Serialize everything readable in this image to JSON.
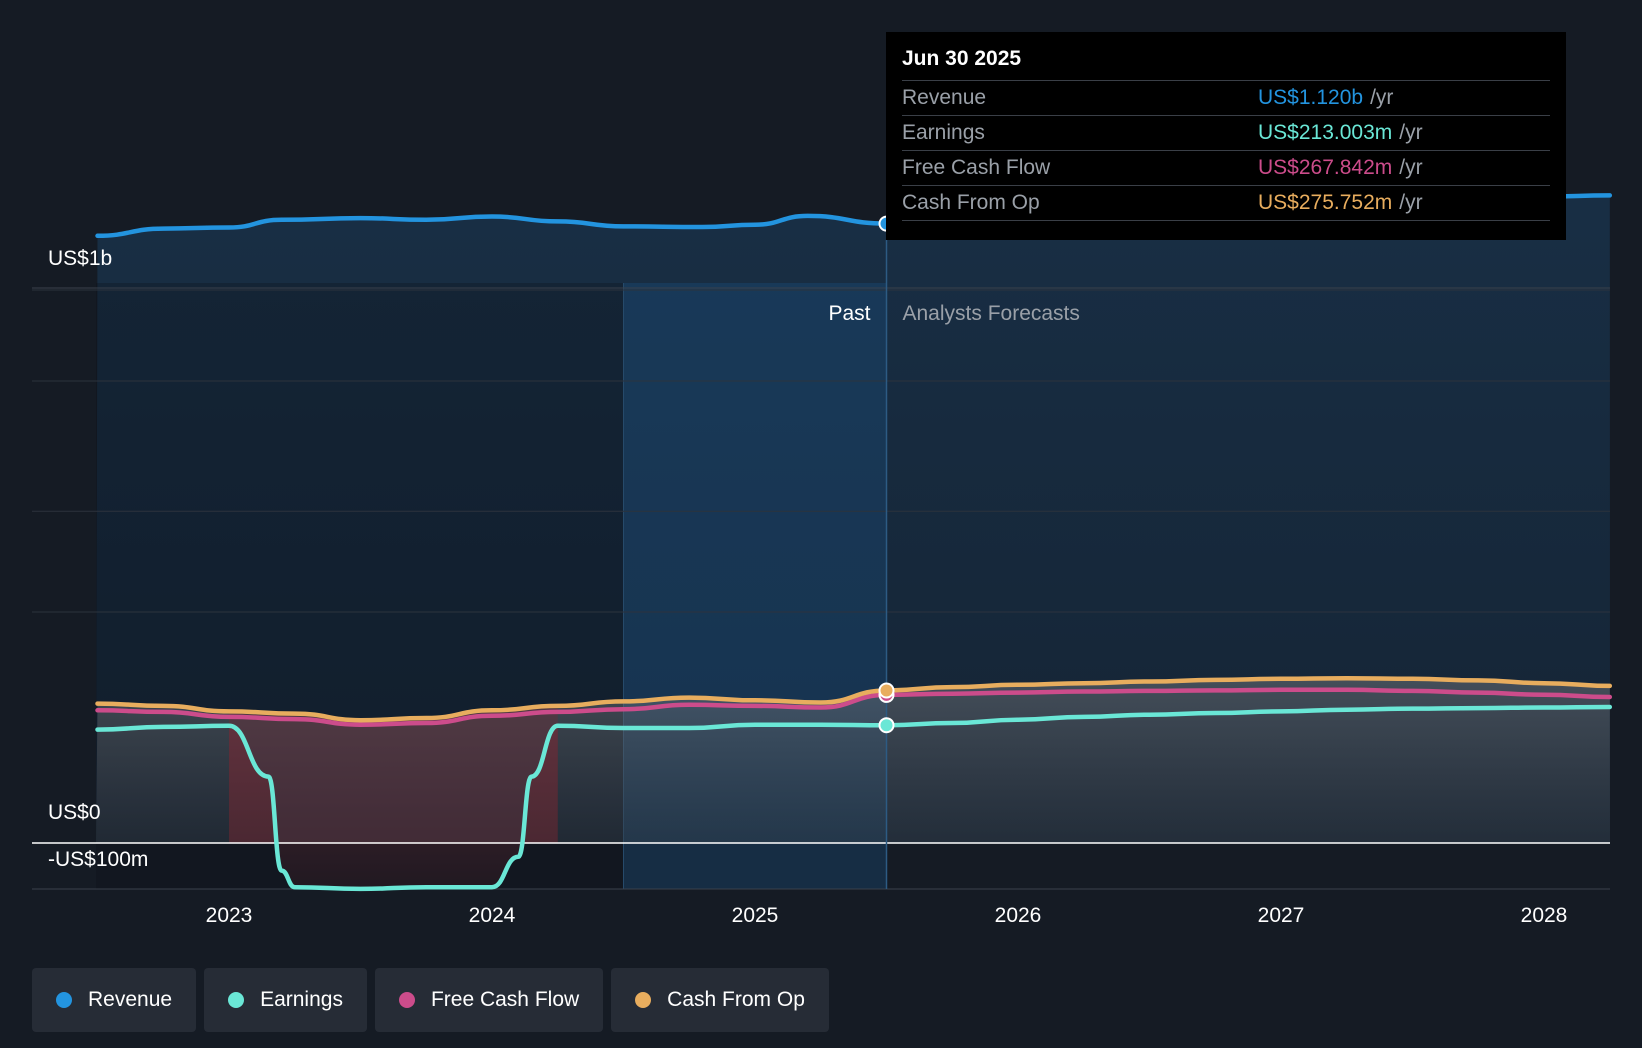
{
  "chart_data": {
    "type": "line",
    "y_ticks": [
      {
        "label": "US$1b",
        "value": 1000
      },
      {
        "label": "US$0",
        "value": 0
      },
      {
        "label": "-US$100m",
        "value": -100
      }
    ],
    "x_ticks": [
      "2023",
      "2024",
      "2025",
      "2026",
      "2027",
      "2028"
    ],
    "ylim": [
      -100,
      1200
    ],
    "past_label": "Past",
    "forecast_label": "Analysts Forecasts",
    "series": [
      {
        "name": "Revenue",
        "color": "#2394df",
        "points": [
          [
            2022.5,
            1098
          ],
          [
            2022.75,
            1111
          ],
          [
            2023.0,
            1113
          ],
          [
            2023.2,
            1127
          ],
          [
            2023.5,
            1130
          ],
          [
            2023.75,
            1127
          ],
          [
            2024.0,
            1133
          ],
          [
            2024.25,
            1124
          ],
          [
            2024.5,
            1115
          ],
          [
            2024.8,
            1114
          ],
          [
            2025.0,
            1118
          ],
          [
            2025.2,
            1134
          ],
          [
            2025.5,
            1120
          ],
          [
            2025.75,
            1115
          ],
          [
            2026.0,
            1112
          ],
          [
            2026.25,
            1111
          ],
          [
            2026.5,
            1116
          ],
          [
            2026.75,
            1129
          ],
          [
            2027.0,
            1144
          ],
          [
            2027.25,
            1156
          ],
          [
            2027.5,
            1162
          ],
          [
            2027.75,
            1166
          ],
          [
            2028.0,
            1169
          ],
          [
            2028.25,
            1171
          ]
        ]
      },
      {
        "name": "Earnings",
        "color": "#6ae7d6",
        "points": [
          [
            2022.5,
            205
          ],
          [
            2022.75,
            210
          ],
          [
            2023.0,
            212
          ],
          [
            2023.15,
            120
          ],
          [
            2023.2,
            -50
          ],
          [
            2023.25,
            -80
          ],
          [
            2023.5,
            -83
          ],
          [
            2023.75,
            -80
          ],
          [
            2024.0,
            -80
          ],
          [
            2024.1,
            -25
          ],
          [
            2024.15,
            120
          ],
          [
            2024.25,
            212
          ],
          [
            2024.5,
            208
          ],
          [
            2024.75,
            208
          ],
          [
            2025.0,
            214
          ],
          [
            2025.25,
            214
          ],
          [
            2025.5,
            213
          ],
          [
            2025.75,
            217
          ],
          [
            2026.0,
            223
          ],
          [
            2026.25,
            228
          ],
          [
            2026.5,
            232
          ],
          [
            2026.75,
            235
          ],
          [
            2027.0,
            238
          ],
          [
            2027.25,
            241
          ],
          [
            2027.5,
            243
          ],
          [
            2027.75,
            244
          ],
          [
            2028.0,
            245
          ],
          [
            2028.25,
            246
          ]
        ]
      },
      {
        "name": "Free Cash Flow",
        "color": "#cc4c8b",
        "points": [
          [
            2022.5,
            240
          ],
          [
            2022.75,
            237
          ],
          [
            2023.0,
            228
          ],
          [
            2023.25,
            224
          ],
          [
            2023.5,
            214
          ],
          [
            2023.75,
            217
          ],
          [
            2024.0,
            230
          ],
          [
            2024.25,
            237
          ],
          [
            2024.5,
            242
          ],
          [
            2024.75,
            250
          ],
          [
            2025.0,
            248
          ],
          [
            2025.25,
            245
          ],
          [
            2025.5,
            267.8
          ],
          [
            2025.75,
            270
          ],
          [
            2026.0,
            272
          ],
          [
            2026.25,
            274
          ],
          [
            2026.5,
            275
          ],
          [
            2026.75,
            276
          ],
          [
            2027.0,
            277
          ],
          [
            2027.25,
            277
          ],
          [
            2027.5,
            275
          ],
          [
            2027.75,
            272
          ],
          [
            2028.0,
            268
          ],
          [
            2028.25,
            264
          ]
        ]
      },
      {
        "name": "Cash From Op",
        "color": "#e8ad5e",
        "points": [
          [
            2022.5,
            252
          ],
          [
            2022.75,
            248
          ],
          [
            2023.0,
            238
          ],
          [
            2023.25,
            234
          ],
          [
            2023.5,
            222
          ],
          [
            2023.75,
            226
          ],
          [
            2024.0,
            240
          ],
          [
            2024.25,
            248
          ],
          [
            2024.5,
            256
          ],
          [
            2024.75,
            263
          ],
          [
            2025.0,
            258
          ],
          [
            2025.25,
            254
          ],
          [
            2025.5,
            275.8
          ],
          [
            2025.75,
            282
          ],
          [
            2026.0,
            286
          ],
          [
            2026.25,
            289
          ],
          [
            2026.5,
            292
          ],
          [
            2026.75,
            295
          ],
          [
            2027.0,
            297
          ],
          [
            2027.25,
            298
          ],
          [
            2027.5,
            297
          ],
          [
            2027.75,
            294
          ],
          [
            2028.0,
            289
          ],
          [
            2028.25,
            284
          ]
        ]
      }
    ],
    "highlight": {
      "x": 2025.5,
      "past_band_start": 2024.5
    }
  },
  "tooltip": {
    "date": "Jun 30 2025",
    "rows": [
      {
        "label": "Revenue",
        "value": "US$1.120b",
        "unit": "/yr",
        "color": "#2394df"
      },
      {
        "label": "Earnings",
        "value": "US$213.003m",
        "unit": "/yr",
        "color": "#6ae7d6"
      },
      {
        "label": "Free Cash Flow",
        "value": "US$267.842m",
        "unit": "/yr",
        "color": "#cc4c8b"
      },
      {
        "label": "Cash From Op",
        "value": "US$275.752m",
        "unit": "/yr",
        "color": "#e8ad5e"
      }
    ]
  },
  "legend": [
    {
      "label": "Revenue",
      "color": "#2394df"
    },
    {
      "label": "Earnings",
      "color": "#6ae7d6"
    },
    {
      "label": "Free Cash Flow",
      "color": "#cc4c8b"
    },
    {
      "label": "Cash From Op",
      "color": "#e8ad5e"
    }
  ]
}
